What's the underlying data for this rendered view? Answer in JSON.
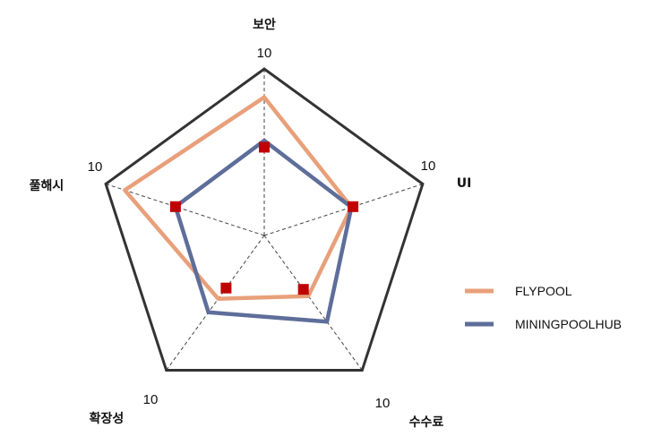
{
  "chart_data": {
    "type": "radar",
    "title": "",
    "axes": [
      "보안",
      "UI",
      "수수료",
      "확장성",
      "풀해시"
    ],
    "max_labels": [
      "10",
      "10",
      "10",
      "10",
      "10"
    ],
    "max": 10,
    "grid": "spokes-dashed",
    "legend_position": "right",
    "series": [
      {
        "name": "FLYPOOL",
        "values": [
          8.3,
          5.5,
          4.5,
          4.7,
          8.8
        ],
        "color": "#E8A07A"
      },
      {
        "name": "MININGPOOLHUB",
        "values": [
          5.7,
          5.5,
          6.4,
          5.7,
          5.6
        ],
        "color": "#5E6E9A"
      }
    ],
    "markers": [
      5.3,
      5.6,
      4.0,
      3.9,
      5.6
    ],
    "marker_color": "#C00000"
  }
}
